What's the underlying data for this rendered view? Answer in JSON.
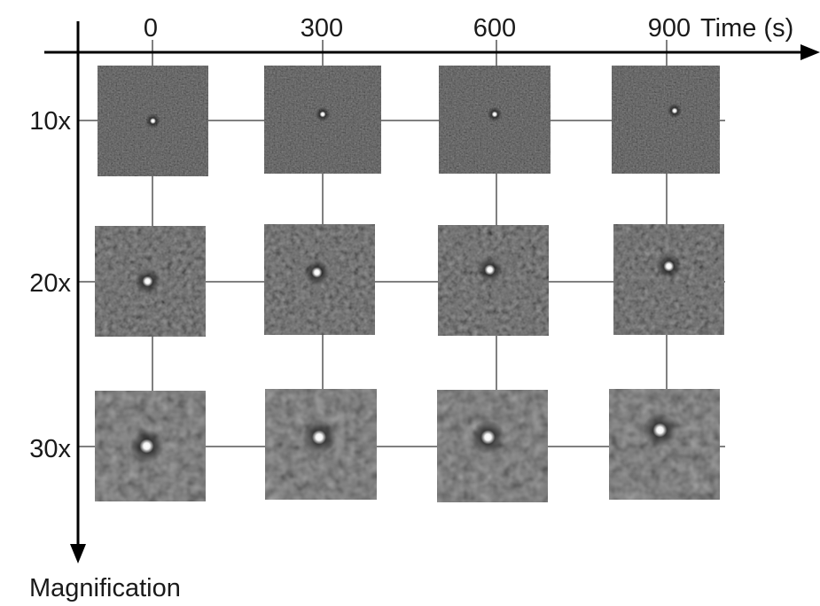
{
  "time_axis": {
    "label": "Time (s)",
    "ticks": [
      "0",
      "300",
      "600",
      "900"
    ]
  },
  "magnification_axis": {
    "label": "Magnification",
    "ticks": [
      "10x",
      "20x",
      "30x"
    ]
  },
  "grid": {
    "rows": 3,
    "columns": 4,
    "panel_content": "bright point spot on dark speckled background",
    "colors": {
      "panel_background": "#2a2a2a",
      "spot": "#ffffff",
      "line": "#000000"
    }
  }
}
